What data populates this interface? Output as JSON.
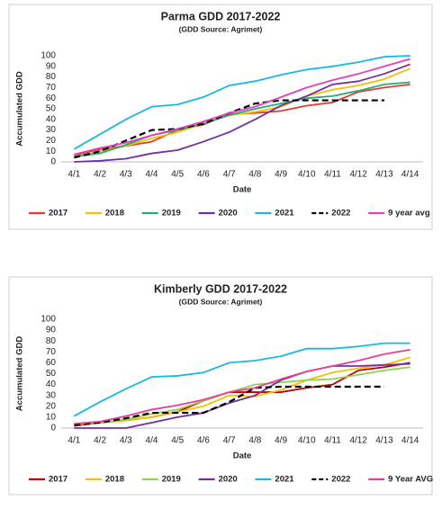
{
  "chart_data": [
    {
      "type": "line",
      "title": "Parma GDD 2017-2022",
      "subtitle": "(GDD Source: Agrimet)",
      "y_label": "Accumulated GDD",
      "x_label": "Date",
      "categories": [
        "4/1",
        "4/2",
        "4/3",
        "4/4",
        "4/5",
        "4/6",
        "4/7",
        "4/8",
        "4/9",
        "4/10",
        "4/11",
        "4/12",
        "4/13",
        "4/14"
      ],
      "ylim": [
        0,
        100
      ],
      "yticks": [
        0,
        10,
        20,
        30,
        40,
        50,
        60,
        70,
        80,
        90,
        100
      ],
      "grid": false,
      "series": [
        {
          "name": "2017",
          "color": "#e03c31",
          "values": [
            6,
            12,
            15,
            19,
            30,
            35,
            45,
            46,
            48,
            53,
            56,
            66,
            70,
            73
          ]
        },
        {
          "name": "2018",
          "color": "#f5c000",
          "values": [
            5,
            10,
            15,
            22,
            28,
            36,
            44,
            47,
            52,
            62,
            68,
            72,
            78,
            88
          ]
        },
        {
          "name": "2019",
          "color": "#2aa876",
          "values": [
            5,
            8,
            16,
            25,
            30,
            36,
            44,
            50,
            55,
            60,
            62,
            67,
            73,
            75
          ]
        },
        {
          "name": "2020",
          "color": "#7030a0",
          "values": [
            0,
            1,
            3,
            8,
            11,
            19,
            28,
            40,
            53,
            62,
            73,
            76,
            83,
            92
          ]
        },
        {
          "name": "2021",
          "color": "#19b8e0",
          "values": [
            12,
            26,
            40,
            52,
            54,
            61,
            72,
            76,
            82,
            87,
            90,
            94,
            99,
            100
          ]
        },
        {
          "name": "2022",
          "color": "#000000",
          "dashed": true,
          "values": [
            4,
            10,
            20,
            30,
            31,
            36,
            46,
            55,
            58,
            58,
            58,
            58,
            58,
            null
          ]
        },
        {
          "name": "9 year avg",
          "color": "#e040c0",
          "values": [
            7,
            13,
            18,
            25,
            31,
            38,
            46,
            52,
            61,
            70,
            77,
            83,
            90,
            97
          ]
        }
      ]
    },
    {
      "type": "line",
      "title": "Kimberly GDD 2017-2022",
      "subtitle": "(GDD Source: Agrimet)",
      "y_label": "Accumulated GDD",
      "x_label": "Date",
      "categories": [
        "4/1",
        "4/2",
        "4/3",
        "4/4",
        "4/5",
        "4/6",
        "4/7",
        "4/8",
        "4/9",
        "4/10",
        "4/11",
        "4/12",
        "4/13",
        "4/14"
      ],
      "ylim": [
        0,
        100
      ],
      "yticks": [
        0,
        10,
        20,
        30,
        40,
        50,
        60,
        70,
        80,
        90,
        100
      ],
      "grid": false,
      "series": [
        {
          "name": "2017",
          "color": "#c00000",
          "values": [
            2,
            5,
            7,
            10,
            15,
            25,
            33,
            33,
            33,
            37,
            40,
            53,
            56,
            60
          ]
        },
        {
          "name": "2018",
          "color": "#f5c000",
          "values": [
            3,
            5,
            7,
            10,
            15,
            20,
            30,
            29,
            35,
            44,
            51,
            55,
            58,
            65
          ]
        },
        {
          "name": "2019",
          "color": "#92d050",
          "values": [
            3,
            5,
            8,
            13,
            17,
            25,
            33,
            40,
            42,
            44,
            45,
            49,
            53,
            56
          ]
        },
        {
          "name": "2020",
          "color": "#7030a0",
          "values": [
            0,
            0,
            0,
            5,
            10,
            14,
            23,
            30,
            44,
            52,
            57,
            57,
            58,
            59
          ]
        },
        {
          "name": "2021",
          "color": "#19b8e0",
          "values": [
            11,
            24,
            36,
            47,
            48,
            51,
            60,
            62,
            66,
            73,
            73,
            75,
            78,
            78
          ]
        },
        {
          "name": "2022",
          "color": "#000000",
          "dashed": true,
          "values": [
            3,
            5,
            9,
            14,
            14,
            14,
            24,
            37,
            38,
            38,
            38,
            38,
            38,
            null
          ]
        },
        {
          "name": "9 Year AVG",
          "color": "#e83e9a",
          "values": [
            4,
            6,
            11,
            17,
            21,
            26,
            33,
            37,
            45,
            52,
            57,
            62,
            68,
            72
          ]
        }
      ]
    }
  ]
}
